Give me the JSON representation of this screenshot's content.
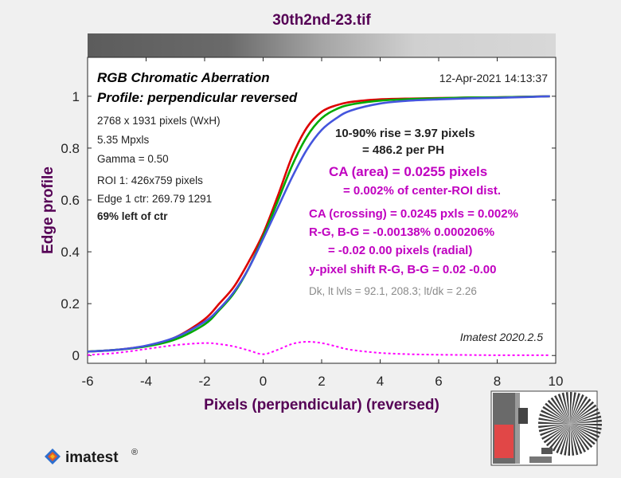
{
  "chart_data": {
    "type": "line",
    "title": "30th2nd-23.tif",
    "xlabel": "Pixels (perpendicular)   (reversed)",
    "ylabel": "Edge profile",
    "xlim": [
      -6,
      10
    ],
    "ylim": [
      -0.03,
      1.15
    ],
    "xticks": [
      "-6",
      "-4",
      "-2",
      "0",
      "2",
      "4",
      "6",
      "8",
      "10"
    ],
    "yticks": [
      "0",
      "0.2",
      "0.4",
      "0.6",
      "0.8",
      "1"
    ],
    "x": [
      -6,
      -5,
      -4,
      -3,
      -2,
      -1.5,
      -1,
      -0.5,
      0,
      0.5,
      1,
      1.5,
      2,
      2.5,
      3,
      4,
      5,
      6,
      7,
      8,
      9,
      9.8
    ],
    "series": [
      {
        "name": "R",
        "color": "#dd0000",
        "values": [
          0.015,
          0.022,
          0.037,
          0.07,
          0.14,
          0.2,
          0.265,
          0.36,
          0.47,
          0.615,
          0.77,
          0.88,
          0.94,
          0.965,
          0.978,
          0.988,
          0.991,
          0.993,
          0.995,
          0.996,
          0.998,
          1.0
        ]
      },
      {
        "name": "G",
        "color": "#00aa00",
        "values": [
          0.015,
          0.022,
          0.035,
          0.062,
          0.12,
          0.175,
          0.24,
          0.335,
          0.458,
          0.595,
          0.735,
          0.845,
          0.915,
          0.95,
          0.968,
          0.983,
          0.989,
          0.992,
          0.995,
          0.996,
          0.998,
          1.0
        ]
      },
      {
        "name": "B",
        "color": "#4455dd",
        "values": [
          0.015,
          0.022,
          0.038,
          0.07,
          0.13,
          0.18,
          0.245,
          0.335,
          0.45,
          0.57,
          0.69,
          0.795,
          0.87,
          0.915,
          0.945,
          0.972,
          0.983,
          0.988,
          0.992,
          0.994,
          0.997,
          1.0
        ]
      },
      {
        "name": "CA",
        "color": "#ff00ff",
        "dashed": true,
        "values": [
          0.002,
          0.01,
          0.025,
          0.04,
          0.048,
          0.044,
          0.035,
          0.02,
          0.005,
          0.022,
          0.045,
          0.053,
          0.048,
          0.035,
          0.022,
          0.01,
          0.005,
          0.003,
          0.002,
          0.001,
          0.001,
          0.001
        ]
      }
    ]
  },
  "header": {
    "title": "RGB Chromatic Aberration",
    "subtitle": "Profile: perpendicular reversed",
    "date": "12-Apr-2021 14:13:37"
  },
  "info": {
    "line1": "2768 x 1931 pixels (WxH)",
    "line2": "5.35 Mpxls",
    "line3": "Gamma = 0.50",
    "line4": "ROI 1: 426x759 pixels",
    "line5": "Edge 1 ctr: 269.79  1291",
    "line6": "69% left of ctr"
  },
  "results": {
    "rise1": "10-90% rise = 3.97 pixels",
    "rise2": "= 486.2 per PH",
    "ca_area": "CA (area) = 0.0255 pixels",
    "ca_area_pct": "= 0.002% of center-ROI dist.",
    "ca_cross": "CA (crossing) = 0.0245 pxls = 0.002%",
    "rg_bg": "R-G, B-G = -0.00138%  0.000206%",
    "radial": "= -0.02  0.00 pixels (radial)",
    "yshift": "y-pixel shift R-G, B-G = 0.02  -0.00",
    "levels": "Dk, lt lvls = 92.1, 208.3;  lt/dk = 2.26",
    "version": "Imatest 2020.2.5"
  },
  "logo": {
    "text": "imatest",
    "mark": "®"
  }
}
